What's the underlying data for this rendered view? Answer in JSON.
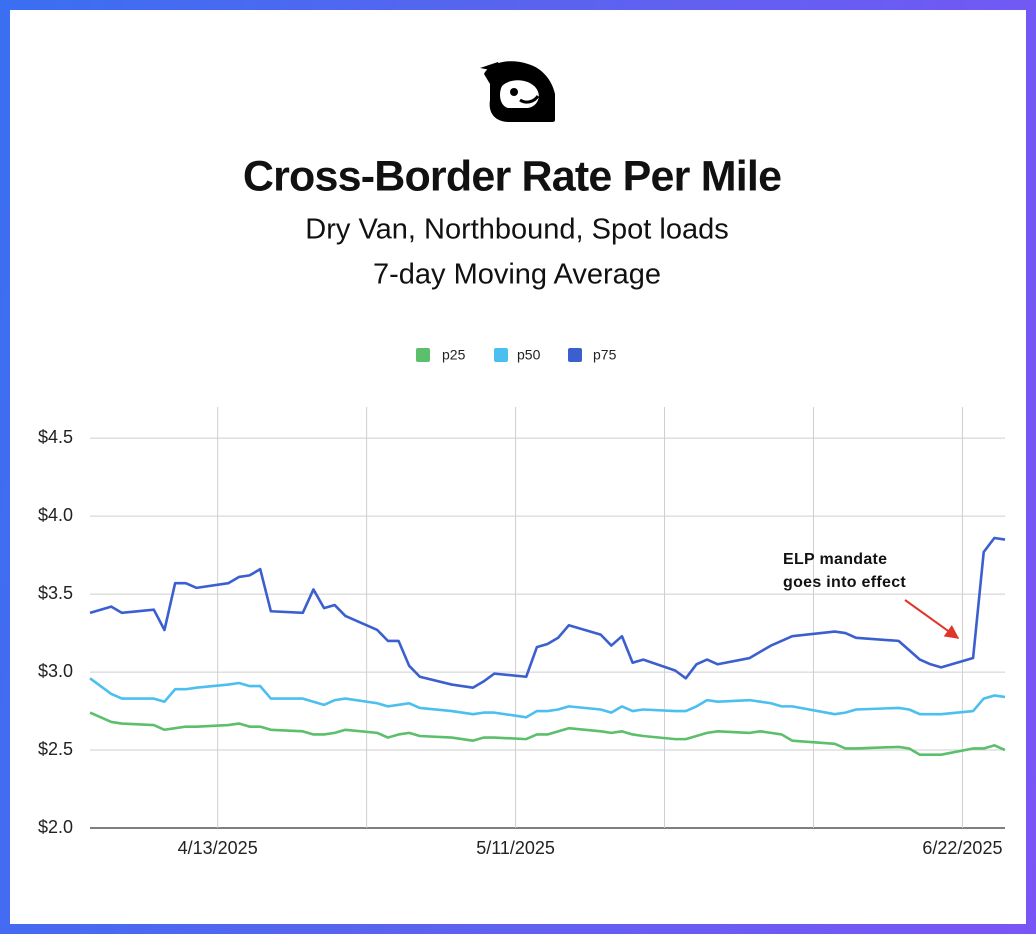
{
  "chart_data": {
    "type": "line",
    "title": "Cross-Border Rate Per Mile",
    "subtitle": [
      "Dry Van, Northbound, Spot loads",
      "7-day Moving Average"
    ],
    "annotation": [
      "ELP mandate",
      "goes into effect"
    ],
    "x": [
      "4/1/2025",
      "4/3/2025",
      "4/4/2025",
      "4/7/2025",
      "4/8/2025",
      "4/9/2025",
      "4/10/2025",
      "4/11/2025",
      "4/14/2025",
      "4/15/2025",
      "4/16/2025",
      "4/17/2025",
      "4/18/2025",
      "4/21/2025",
      "4/22/2025",
      "4/23/2025",
      "4/24/2025",
      "4/25/2025",
      "4/28/2025",
      "4/29/2025",
      "4/30/2025",
      "5/1/2025",
      "5/2/2025",
      "5/5/2025",
      "5/7/2025",
      "5/8/2025",
      "5/9/2025",
      "5/12/2025",
      "5/13/2025",
      "5/14/2025",
      "5/15/2025",
      "5/16/2025",
      "5/19/2025",
      "5/20/2025",
      "5/21/2025",
      "5/22/2025",
      "5/23/2025",
      "5/26/2025",
      "5/27/2025",
      "5/28/2025",
      "5/29/2025",
      "5/30/2025",
      "6/2/2025",
      "6/3/2025",
      "6/4/2025",
      "6/5/2025",
      "6/6/2025",
      "6/10/2025",
      "6/11/2025",
      "6/12/2025",
      "6/16/2025",
      "6/17/2025",
      "6/18/2025",
      "6/19/2025",
      "6/20/2025",
      "6/23/2025",
      "6/24/2025",
      "6/25/2025",
      "6/26/2025"
    ],
    "series": [
      {
        "name": "p25",
        "color": "#5cbf6c",
        "values": [
          2.74,
          2.68,
          2.67,
          2.66,
          2.63,
          2.64,
          2.65,
          2.65,
          2.66,
          2.67,
          2.65,
          2.65,
          2.63,
          2.62,
          2.6,
          2.6,
          2.61,
          2.63,
          2.61,
          2.58,
          2.6,
          2.61,
          2.59,
          2.58,
          2.56,
          2.58,
          2.58,
          2.57,
          2.6,
          2.6,
          2.62,
          2.64,
          2.62,
          2.61,
          2.62,
          2.6,
          2.59,
          2.57,
          2.57,
          2.59,
          2.61,
          2.62,
          2.61,
          2.62,
          2.61,
          2.6,
          2.56,
          2.54,
          2.51,
          2.51,
          2.52,
          2.51,
          2.47,
          2.47,
          2.47,
          2.51,
          2.51,
          2.53,
          2.5
        ]
      },
      {
        "name": "p50",
        "color": "#4bbff0",
        "values": [
          2.96,
          2.86,
          2.83,
          2.83,
          2.81,
          2.89,
          2.89,
          2.9,
          2.92,
          2.93,
          2.91,
          2.91,
          2.83,
          2.83,
          2.81,
          2.79,
          2.82,
          2.83,
          2.8,
          2.78,
          2.79,
          2.8,
          2.77,
          2.75,
          2.73,
          2.74,
          2.74,
          2.71,
          2.75,
          2.75,
          2.76,
          2.78,
          2.76,
          2.74,
          2.78,
          2.75,
          2.76,
          2.75,
          2.75,
          2.78,
          2.82,
          2.81,
          2.82,
          2.81,
          2.8,
          2.78,
          2.78,
          2.73,
          2.74,
          2.76,
          2.77,
          2.76,
          2.73,
          2.73,
          2.73,
          2.75,
          2.83,
          2.85,
          2.84
        ]
      },
      {
        "name": "p75",
        "color": "#3c5fcf",
        "values": [
          3.38,
          3.42,
          3.38,
          3.4,
          3.27,
          3.57,
          3.57,
          3.54,
          3.57,
          3.61,
          3.62,
          3.66,
          3.39,
          3.38,
          3.53,
          3.41,
          3.43,
          3.36,
          3.27,
          3.2,
          3.2,
          3.04,
          2.97,
          2.92,
          2.9,
          2.94,
          2.99,
          2.97,
          3.16,
          3.18,
          3.22,
          3.3,
          3.24,
          3.17,
          3.23,
          3.06,
          3.08,
          3.01,
          2.96,
          3.05,
          3.08,
          3.05,
          3.09,
          3.13,
          3.17,
          3.2,
          3.23,
          3.26,
          3.25,
          3.22,
          3.2,
          3.14,
          3.08,
          3.05,
          3.03,
          3.09,
          3.77,
          3.86,
          3.85
        ]
      }
    ],
    "xlim": [
      "4/1/2025",
      "6/26/2025"
    ],
    "xticks": [
      "4/13/2025",
      {
        "value": "4/27/2025",
        "label": null
      },
      "5/11/2025",
      {
        "value": "5/25/2025",
        "label": null
      },
      {
        "value": "6/8/2025",
        "label": null
      },
      "6/22/2025"
    ],
    "ylim": [
      2.0,
      4.7
    ],
    "yticks": [
      {
        "value": 2.0,
        "label": "$2.0"
      },
      {
        "value": 2.5,
        "label": "$2.5"
      },
      {
        "value": 3.0,
        "label": "$3.0"
      },
      {
        "value": 3.5,
        "label": "$3.5"
      },
      {
        "value": 4.0,
        "label": "$4.0"
      },
      {
        "value": 4.5,
        "label": "$4.5"
      }
    ],
    "grid": true,
    "legend": "top"
  }
}
